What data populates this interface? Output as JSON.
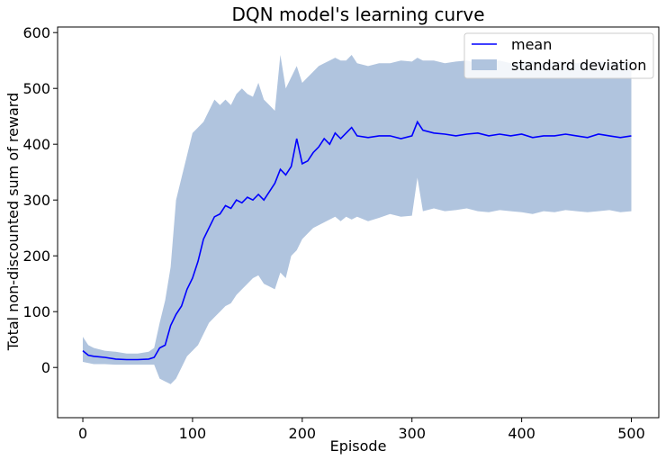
{
  "chart_data": {
    "type": "line",
    "title": "DQN model's learning curve",
    "xlabel": "Episode",
    "ylabel": "Total non-discounted sum of reward",
    "xlim": [
      -23,
      525
    ],
    "ylim": [
      -90,
      610
    ],
    "xticks": [
      0,
      100,
      200,
      300,
      400,
      500
    ],
    "yticks": [
      0,
      100,
      200,
      300,
      400,
      500,
      600
    ],
    "grid": false,
    "legend_position": "top-right",
    "series": [
      {
        "name": "mean",
        "kind": "line",
        "color": "#0000ff",
        "x": [
          0,
          5,
          10,
          20,
          30,
          40,
          50,
          60,
          65,
          70,
          75,
          80,
          85,
          90,
          95,
          100,
          105,
          110,
          115,
          120,
          125,
          130,
          135,
          140,
          145,
          150,
          155,
          160,
          165,
          170,
          175,
          180,
          185,
          190,
          195,
          200,
          205,
          210,
          215,
          220,
          225,
          230,
          235,
          240,
          245,
          250,
          260,
          270,
          280,
          290,
          300,
          305,
          310,
          320,
          330,
          340,
          350,
          360,
          370,
          380,
          390,
          400,
          410,
          420,
          430,
          440,
          450,
          460,
          470,
          480,
          490,
          500
        ],
        "y": [
          30,
          22,
          20,
          18,
          15,
          14,
          14,
          15,
          18,
          35,
          40,
          75,
          95,
          110,
          140,
          160,
          190,
          230,
          250,
          270,
          275,
          290,
          285,
          300,
          295,
          305,
          300,
          310,
          300,
          315,
          330,
          355,
          345,
          360,
          410,
          365,
          370,
          385,
          395,
          410,
          400,
          420,
          410,
          420,
          430,
          415,
          412,
          415,
          415,
          410,
          415,
          440,
          425,
          420,
          418,
          415,
          418,
          420,
          415,
          418,
          415,
          418,
          412,
          415,
          415,
          418,
          415,
          412,
          418,
          415,
          412,
          415
        ]
      },
      {
        "name": "standard deviation",
        "kind": "band",
        "color": "#b0c4de",
        "x": [
          0,
          5,
          10,
          20,
          30,
          40,
          50,
          60,
          65,
          70,
          75,
          80,
          85,
          90,
          95,
          100,
          105,
          110,
          115,
          120,
          125,
          130,
          135,
          140,
          145,
          150,
          155,
          160,
          165,
          170,
          175,
          180,
          185,
          190,
          195,
          200,
          205,
          210,
          215,
          220,
          225,
          230,
          235,
          240,
          245,
          250,
          260,
          270,
          280,
          290,
          300,
          305,
          310,
          320,
          330,
          340,
          350,
          360,
          370,
          380,
          390,
          400,
          410,
          420,
          430,
          440,
          450,
          460,
          470,
          480,
          490,
          500
        ],
        "lower": [
          10,
          8,
          6,
          6,
          5,
          5,
          5,
          5,
          5,
          -20,
          -25,
          -30,
          -20,
          0,
          20,
          30,
          40,
          60,
          80,
          90,
          100,
          110,
          115,
          130,
          140,
          150,
          160,
          165,
          150,
          145,
          140,
          170,
          160,
          200,
          210,
          230,
          240,
          250,
          255,
          260,
          265,
          270,
          262,
          270,
          265,
          270,
          262,
          268,
          275,
          270,
          272,
          340,
          280,
          285,
          280,
          282,
          285,
          280,
          278,
          282,
          280,
          278,
          275,
          280,
          278,
          282,
          280,
          278,
          280,
          282,
          278,
          280
        ],
        "upper": [
          55,
          40,
          35,
          30,
          28,
          25,
          25,
          28,
          35,
          80,
          120,
          180,
          300,
          340,
          380,
          420,
          430,
          440,
          460,
          480,
          470,
          480,
          470,
          490,
          500,
          490,
          485,
          510,
          480,
          470,
          460,
          560,
          500,
          520,
          540,
          510,
          520,
          530,
          540,
          545,
          550,
          555,
          550,
          550,
          560,
          545,
          540,
          545,
          545,
          550,
          548,
          555,
          550,
          550,
          545,
          548,
          550,
          545,
          548,
          550,
          545,
          548,
          550,
          545,
          548,
          550,
          545,
          548,
          550,
          545,
          548,
          550
        ]
      }
    ]
  }
}
